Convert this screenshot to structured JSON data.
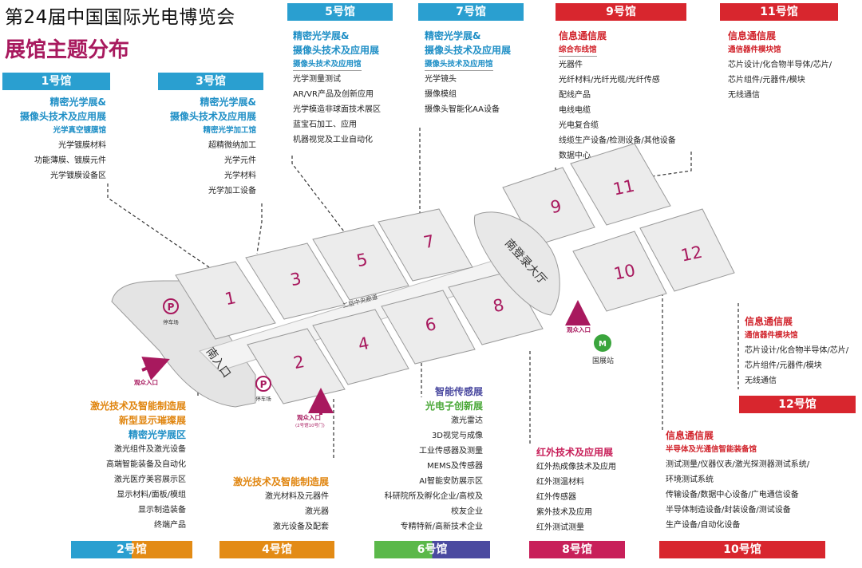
{
  "title": "第24届中国国际光电博览会",
  "subtitle": "展馆主题分布",
  "halls": {
    "h1": {
      "label": "1号馆",
      "lines": [
        "精密光学展&",
        "摄像头技术及应用展"
      ],
      "sub": "光学真空镀膜馆",
      "items": [
        "光学镀膜材料",
        "功能薄膜、镀膜元件",
        "光学镀膜设备区"
      ]
    },
    "h3": {
      "label": "3号馆",
      "lines": [
        "精密光学展&",
        "摄像头技术及应用展"
      ],
      "sub": "精密光学加工馆",
      "items": [
        "超精微纳加工",
        "光学元件",
        "光学材料",
        "光学加工设备"
      ]
    },
    "h5": {
      "label": "5号馆",
      "lines": [
        "精密光学展&",
        "摄像头技术及应用展"
      ],
      "sub": "摄像头技术及应用馆",
      "items": [
        "光学测量测试",
        "AR/VR产品及创新应用",
        "光学模造非球面技术展区",
        "蓝宝石加工、应用",
        "机器视觉及工业自动化"
      ]
    },
    "h7": {
      "label": "7号馆",
      "lines": [
        "精密光学展&",
        "摄像头技术及应用展"
      ],
      "sub": "摄像头技术及应用馆",
      "items": [
        "光学镜头",
        "摄像模组",
        "摄像头智能化AA设备"
      ]
    },
    "h9": {
      "label": "9号馆",
      "lines": [
        "信息通信展"
      ],
      "sub": "综合布线馆",
      "items": [
        "光器件",
        "光纤材料/光纤光缆/光纤传感",
        "配线产品",
        "电线电缆",
        "光电复合缆",
        "线缆生产设备/检测设备/其他设备",
        "数据中心"
      ]
    },
    "h11": {
      "label": "11号馆",
      "lines": [
        "信息通信展"
      ],
      "sub": "通信器件模块馆",
      "items": [
        "芯片设计/化合物半导体/芯片/",
        "芯片组件/元器件/模块",
        "无线通信"
      ]
    },
    "h12": {
      "label": "12号馆",
      "lines": [
        "信息通信展"
      ],
      "sub": "通信器件模块馆",
      "items": [
        "芯片设计/化合物半导体/芯片/",
        "芯片组件/元器件/模块",
        "无线通信"
      ]
    },
    "h10": {
      "label": "10号馆",
      "lines": [
        "信息通信展"
      ],
      "sub": "半导体及光通信智能装备馆",
      "items": [
        "测试测量/仪器仪表/激光探测器测试系统/",
        "环境测试系统",
        "传输设备/数据中心设备/广电通信设备",
        "半导体制造设备/封装设备/测试设备",
        "生产设备/自动化设备"
      ]
    },
    "h2": {
      "label": "2号馆",
      "lines": [
        "激光技术及智能制造展",
        "新型显示璀璨展",
        "精密光学展区"
      ],
      "items": [
        "激光组件及激光设备",
        "高端智能装备及自动化",
        "激光医疗美容展示区",
        "显示材料/面板/模组",
        "显示制造装备",
        "终端产品"
      ]
    },
    "h4": {
      "label": "4号馆",
      "lines": [
        "激光技术及智能制造展"
      ],
      "items": [
        "激光材料及元器件",
        "激光器",
        "激光设备及配套"
      ]
    },
    "h6": {
      "label": "6号馆",
      "lines": [
        "智能传感展",
        "光电子创新展"
      ],
      "items": [
        "激光雷达",
        "3D视觉与成像",
        "工业传感器及测量",
        "MEMS及传感器",
        "AI智能安防展示区",
        "科研院所及孵化企业/高校及",
        "校友企业",
        "专精特新/高新技术企业"
      ]
    },
    "h8": {
      "label": "8号馆",
      "lines": [
        "红外技术及应用展"
      ],
      "items": [
        "红外热成像技术及应用",
        "红外测温材料",
        "红外传感器",
        "紫外技术及应用",
        "红外测试测量"
      ]
    }
  },
  "map": {
    "numbers": [
      "1",
      "2",
      "3",
      "4",
      "5",
      "6",
      "7",
      "8",
      "9",
      "10",
      "11",
      "12"
    ],
    "south_entrance": "南入口",
    "south_hall": "南登录大厅",
    "corridor": "二层中央廊道",
    "parking": "停车场",
    "visitor_entrance": "观众入口",
    "visitor_entrance_note": "(2号馆10号门)",
    "station": "国展站",
    "colors": {
      "hall": "#ececec",
      "hall_edge": "#9a9a9a",
      "number": "#a8195e"
    }
  }
}
